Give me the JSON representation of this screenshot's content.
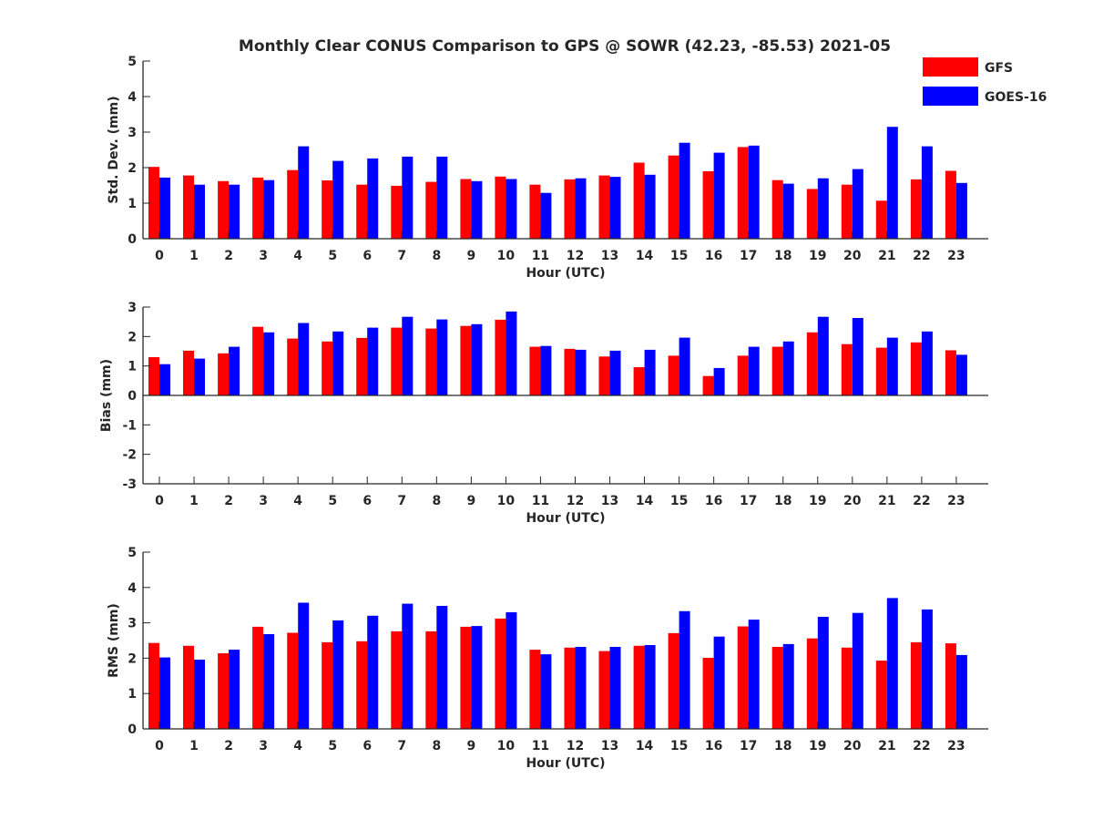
{
  "title": "Monthly Clear CONUS Comparison to GPS @ SOWR (42.23, -85.53) 2021-05",
  "legend": {
    "placement": "top-right",
    "entries": [
      {
        "name": "GFS",
        "color": "#ff0000"
      },
      {
        "name": "GOES-16",
        "color": "#0000ff"
      }
    ]
  },
  "chart_data": [
    {
      "type": "bar",
      "xlabel": "Hour (UTC)",
      "ylabel": "Std. Dev. (mm)",
      "ylim": [
        0,
        5
      ],
      "yticks": [
        0,
        1,
        2,
        3,
        4,
        5
      ],
      "grid": false,
      "categories": [
        "0",
        "1",
        "2",
        "3",
        "4",
        "5",
        "6",
        "7",
        "8",
        "9",
        "10",
        "11",
        "12",
        "13",
        "14",
        "15",
        "16",
        "17",
        "18",
        "19",
        "20",
        "21",
        "22",
        "23"
      ],
      "series": [
        {
          "name": "GFS",
          "color": "#ff0000",
          "values": [
            2.02,
            1.78,
            1.62,
            1.72,
            1.93,
            1.64,
            1.52,
            1.49,
            1.6,
            1.68,
            1.75,
            1.52,
            1.67,
            1.78,
            2.14,
            2.34,
            1.9,
            2.58,
            1.65,
            1.4,
            1.52,
            1.07,
            1.67,
            1.91
          ]
        },
        {
          "name": "GOES-16",
          "color": "#0000ff",
          "values": [
            1.72,
            1.52,
            1.52,
            1.65,
            2.6,
            2.19,
            2.26,
            2.31,
            2.31,
            1.62,
            1.68,
            1.29,
            1.7,
            1.74,
            1.8,
            2.7,
            2.42,
            2.62,
            1.55,
            1.7,
            1.96,
            3.15,
            2.6,
            1.57
          ]
        }
      ]
    },
    {
      "type": "bar",
      "xlabel": "Hour (UTC)",
      "ylabel": "Bias (mm)",
      "ylim": [
        -3,
        3
      ],
      "yticks": [
        -3,
        -2,
        -1,
        0,
        1,
        2,
        3
      ],
      "grid": false,
      "categories": [
        "0",
        "1",
        "2",
        "3",
        "4",
        "5",
        "6",
        "7",
        "8",
        "9",
        "10",
        "11",
        "12",
        "13",
        "14",
        "15",
        "16",
        "17",
        "18",
        "19",
        "20",
        "21",
        "22",
        "23"
      ],
      "series": [
        {
          "name": "GFS",
          "color": "#ff0000",
          "values": [
            1.3,
            1.52,
            1.43,
            2.33,
            1.93,
            1.83,
            1.95,
            2.3,
            2.27,
            2.36,
            2.57,
            1.65,
            1.58,
            1.32,
            0.96,
            1.35,
            0.66,
            1.35,
            1.65,
            2.14,
            1.74,
            1.62,
            1.8,
            1.53
          ]
        },
        {
          "name": "GOES-16",
          "color": "#0000ff",
          "values": [
            1.06,
            1.25,
            1.65,
            2.14,
            2.46,
            2.17,
            2.3,
            2.67,
            2.58,
            2.42,
            2.85,
            1.68,
            1.55,
            1.52,
            1.55,
            1.96,
            0.93,
            1.65,
            1.83,
            2.67,
            2.63,
            1.96,
            2.17,
            1.38
          ]
        }
      ]
    },
    {
      "type": "bar",
      "xlabel": "Hour (UTC)",
      "ylabel": "RMS (mm)",
      "ylim": [
        0,
        5
      ],
      "yticks": [
        0,
        1,
        2,
        3,
        4,
        5
      ],
      "grid": false,
      "categories": [
        "0",
        "1",
        "2",
        "3",
        "4",
        "5",
        "6",
        "7",
        "8",
        "9",
        "10",
        "11",
        "12",
        "13",
        "14",
        "15",
        "16",
        "17",
        "18",
        "19",
        "20",
        "21",
        "22",
        "23"
      ],
      "series": [
        {
          "name": "GFS",
          "color": "#ff0000",
          "values": [
            2.43,
            2.35,
            2.14,
            2.89,
            2.72,
            2.45,
            2.48,
            2.76,
            2.76,
            2.89,
            3.12,
            2.24,
            2.3,
            2.2,
            2.35,
            2.71,
            2.01,
            2.9,
            2.32,
            2.56,
            2.3,
            1.93,
            2.45,
            2.42
          ]
        },
        {
          "name": "GOES-16",
          "color": "#0000ff",
          "values": [
            2.02,
            1.96,
            2.24,
            2.68,
            3.57,
            3.07,
            3.2,
            3.54,
            3.48,
            2.91,
            3.3,
            2.11,
            2.32,
            2.32,
            2.37,
            3.33,
            2.61,
            3.09,
            2.4,
            3.17,
            3.28,
            3.7,
            3.38,
            2.09
          ]
        }
      ]
    }
  ]
}
